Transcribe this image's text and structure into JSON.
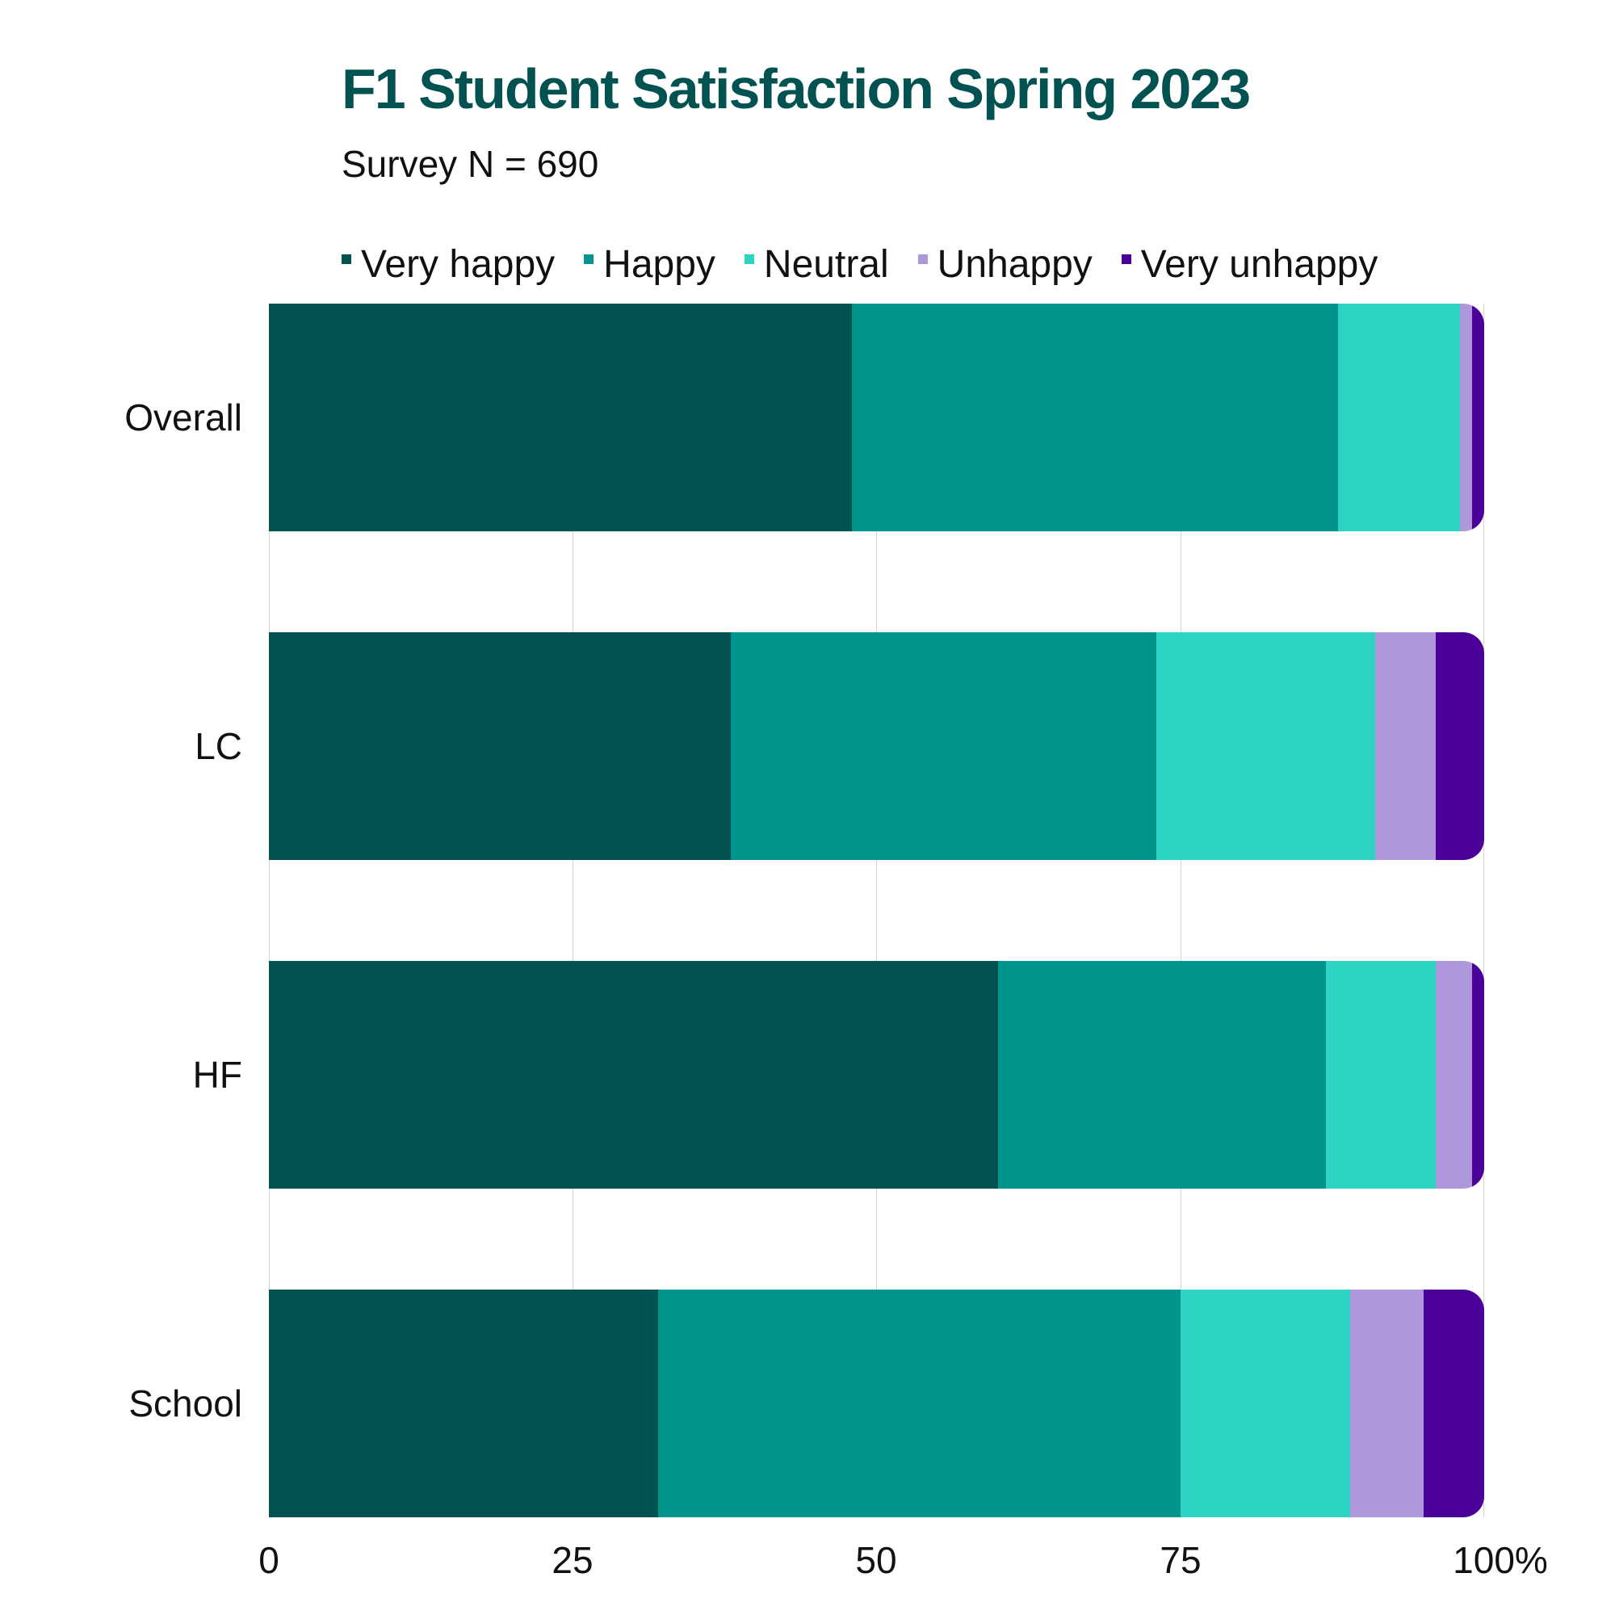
{
  "chart_data": {
    "type": "bar",
    "orientation": "horizontal",
    "stacked": true,
    "title": "F1 Student Satisfaction Spring 2023",
    "subtitle": "Survey N = 690",
    "categories": [
      "Overall",
      "LC",
      "HF",
      "School"
    ],
    "series": [
      {
        "name": "Very happy",
        "color": "#035252",
        "values": [
          48,
          38,
          60,
          32
        ]
      },
      {
        "name": "Happy",
        "color": "#00948F",
        "values": [
          40,
          35,
          27,
          43
        ]
      },
      {
        "name": "Neutral",
        "color": "#2DD4C3",
        "values": [
          10,
          18,
          9,
          14
        ]
      },
      {
        "name": "Unhappy",
        "color": "#AE98DB",
        "values": [
          1,
          5,
          3,
          6
        ]
      },
      {
        "name": "Very unhappy",
        "color": "#4B009A",
        "values": [
          1,
          4,
          1,
          5
        ]
      }
    ],
    "xlabel": "",
    "ylabel": "",
    "xlim": [
      0,
      100
    ],
    "x_ticks": [
      "0",
      "25",
      "50",
      "75",
      "100%"
    ],
    "grid": true,
    "legend_position": "top"
  },
  "header": {
    "title": "F1 Student Satisfaction Spring 2023",
    "subtitle": "Survey N = 690"
  },
  "legend": [
    {
      "label": "Very happy",
      "color": "#035252"
    },
    {
      "label": "Happy",
      "color": "#00948F"
    },
    {
      "label": "Neutral",
      "color": "#2DD4C3"
    },
    {
      "label": "Unhappy",
      "color": "#AE98DB"
    },
    {
      "label": "Very unhappy",
      "color": "#4B009A"
    }
  ],
  "axis": {
    "y_labels": [
      "Overall",
      "LC",
      "HF",
      "School"
    ],
    "x_ticks": [
      "0",
      "25",
      "50",
      "75",
      "100%"
    ]
  }
}
